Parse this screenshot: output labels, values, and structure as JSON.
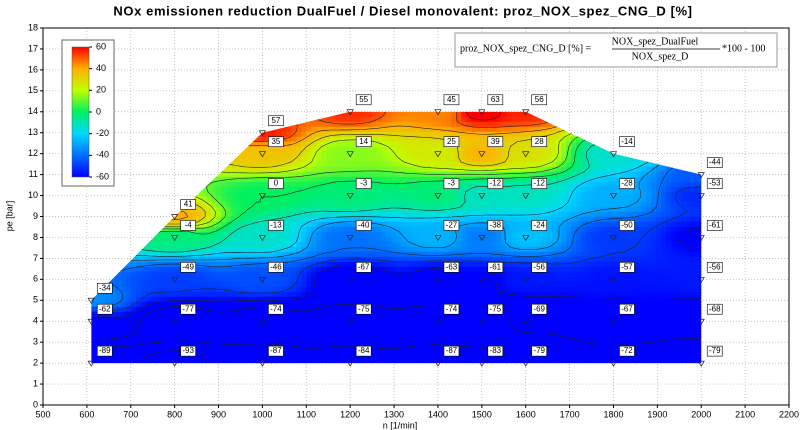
{
  "chart_data": {
    "type": "contour",
    "title": "NOx emissionen reduction DualFuel / Diesel monovalent: proz_NOX_spez_CNG_D [%]",
    "xlabel": "n [1/min]",
    "ylabel": "pe [bar]",
    "x": [
      610,
      800,
      1000,
      1200,
      1400,
      1500,
      1600,
      1800,
      2000,
      610,
      800,
      1000,
      1200,
      1400,
      1500,
      1600,
      1800,
      2000,
      610,
      800,
      1000,
      1200,
      1400,
      1500,
      1600,
      1800,
      2000,
      800,
      1000,
      1200,
      1400,
      1500,
      1600,
      1800,
      2000,
      800,
      1000,
      1200,
      1400,
      1500,
      1600,
      1800,
      2000,
      2000,
      1000,
      1200,
      1400,
      1500,
      1600,
      1800,
      1000,
      1200,
      1400,
      1500,
      1600
    ],
    "y": [
      2,
      2,
      2,
      2,
      2,
      2,
      2,
      2,
      2,
      4,
      4,
      4,
      4,
      4,
      4,
      4,
      4,
      4,
      5,
      6,
      6,
      6,
      6,
      6,
      6,
      6,
      6,
      8,
      8,
      8,
      8,
      8,
      8,
      8,
      8,
      9,
      10,
      10,
      10,
      10,
      10,
      10,
      10,
      11,
      12,
      12,
      12,
      12,
      12,
      12,
      13,
      14,
      14,
      14,
      14
    ],
    "values": [
      -89,
      -93,
      -87,
      -84,
      -87,
      -83,
      -79,
      -72,
      -79,
      -62,
      -77,
      -74,
      -75,
      -74,
      -75,
      -69,
      -67,
      -68,
      -34,
      -49,
      -46,
      -67,
      -63,
      -61,
      -56,
      -57,
      -56,
      -4,
      -13,
      -40,
      -27,
      -38,
      -24,
      -50,
      -61,
      41,
      0,
      -3,
      -3,
      -12,
      -12,
      -28,
      -53,
      -44,
      35,
      14,
      25,
      39,
      28,
      -14,
      57,
      55,
      45,
      63,
      56
    ],
    "xlim": [
      500,
      2200
    ],
    "ylim": [
      0,
      18
    ],
    "xticks": [
      500,
      600,
      700,
      800,
      900,
      1000,
      1100,
      1200,
      1300,
      1400,
      1500,
      1600,
      1700,
      1800,
      1900,
      2000,
      2100,
      2200
    ],
    "yticks": [
      0,
      1,
      2,
      3,
      4,
      5,
      6,
      7,
      8,
      9,
      10,
      11,
      12,
      13,
      14,
      15,
      16,
      17,
      18
    ],
    "grid": true,
    "colorbar": {
      "ticks": [
        60,
        40,
        20,
        0,
        -20,
        -40,
        -60
      ],
      "colors": [
        "#ff0000",
        "#ffb000",
        "#c0ff00",
        "#00f060",
        "#00d8ff",
        "#0070ff",
        "#0000ff"
      ]
    },
    "formula": {
      "lhs": "proz_NOX_spez_CNG_D [%] =",
      "numerator": "NOX_spez_DualFuel",
      "denominator": "NOX_spez_D",
      "rhs": "*100 - 100"
    }
  }
}
